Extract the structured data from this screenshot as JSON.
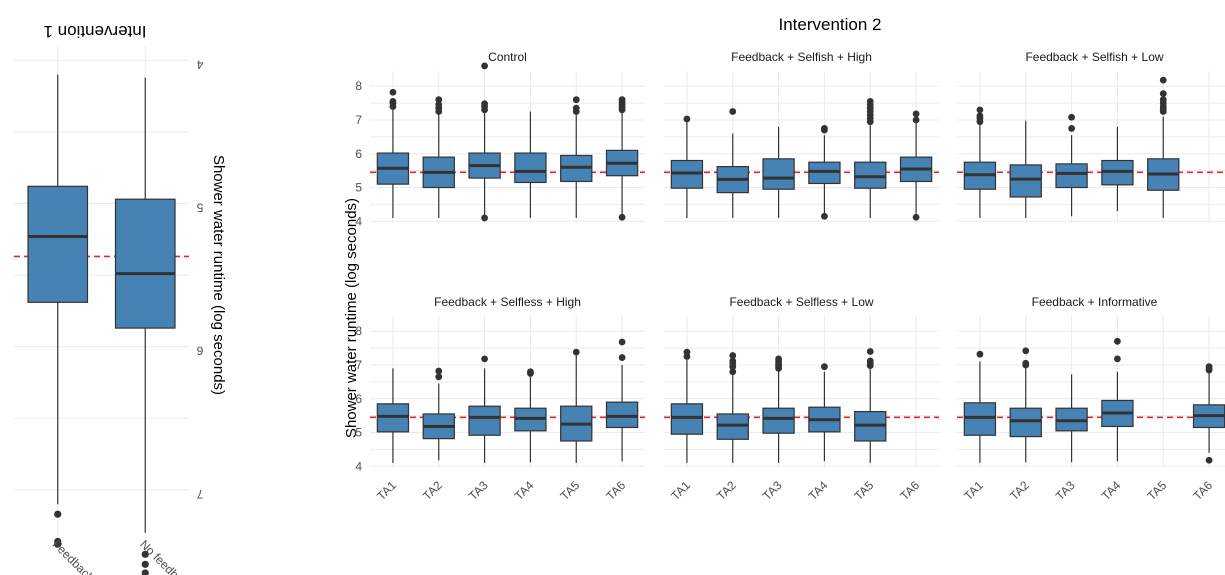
{
  "colors": {
    "box_fill": "#4682b4",
    "box_line": "#333333",
    "reference_line": "#e4262c",
    "grid": "#ebebeb"
  },
  "chart_data": [
    {
      "type": "boxplot",
      "title": "Intervention 1",
      "rotated_180": true,
      "categories": [
        "Feedback",
        "No feedback"
      ],
      "ylabel": "Shower water runtime (log seconds)",
      "ylim": [
        3.9,
        7.35
      ],
      "yticks": [
        "4",
        "5",
        "6",
        "7"
      ],
      "reference_line": 5.37,
      "boxes": [
        {
          "category": "Feedback",
          "min": 4.1,
          "q1": 4.88,
          "median": 5.23,
          "q3": 5.69,
          "max": 7.1,
          "outliers": [
            7.17,
            7.36,
            7.38
          ]
        },
        {
          "category": "No feedback",
          "min": 4.12,
          "q1": 4.97,
          "median": 5.49,
          "q3": 5.87,
          "max": 7.3,
          "outliers": [
            7.45,
            7.52,
            7.58
          ]
        }
      ]
    },
    {
      "type": "boxplot",
      "title": "Intervention 2",
      "ylabel": "Shower water runtime (log seconds)",
      "ylim": [
        3.95,
        8.45
      ],
      "yticks": [
        "4",
        "5",
        "6",
        "7",
        "8"
      ],
      "categories": [
        "TA1",
        "TA2",
        "TA3",
        "TA4",
        "TA5",
        "TA6"
      ],
      "reference_line": 5.45,
      "panels": [
        {
          "name": "Control",
          "boxes": [
            {
              "category": "TA1",
              "min": 4.1,
              "q1": 5.1,
              "median": 5.57,
              "q3": 6.02,
              "max": 7.3,
              "outliers": [
                7.4,
                7.5,
                7.55,
                7.82
              ]
            },
            {
              "category": "TA2",
              "min": 4.1,
              "q1": 5.0,
              "median": 5.45,
              "q3": 5.9,
              "max": 7.2,
              "outliers": [
                7.25,
                7.35,
                7.45,
                7.6
              ]
            },
            {
              "category": "TA3",
              "min": 4.12,
              "q1": 5.28,
              "median": 5.65,
              "q3": 6.02,
              "max": 7.2,
              "outliers": [
                4.1,
                7.3,
                7.4,
                7.48,
                8.6
              ]
            },
            {
              "category": "TA4",
              "min": 4.1,
              "q1": 5.15,
              "median": 5.48,
              "q3": 6.02,
              "max": 7.25,
              "outliers": []
            },
            {
              "category": "TA5",
              "min": 4.1,
              "q1": 5.18,
              "median": 5.6,
              "q3": 5.95,
              "max": 7.15,
              "outliers": [
                7.25,
                7.35,
                7.6
              ]
            },
            {
              "category": "TA6",
              "min": 4.15,
              "q1": 5.35,
              "median": 5.72,
              "q3": 6.1,
              "max": 7.25,
              "outliers": [
                4.12,
                7.3,
                7.38,
                7.45,
                7.52,
                7.6
              ]
            }
          ]
        },
        {
          "name": "Feedback + Selfish + High",
          "boxes": [
            {
              "category": "TA1",
              "min": 4.1,
              "q1": 4.98,
              "median": 5.43,
              "q3": 5.8,
              "max": 7.0,
              "outliers": [
                7.03
              ]
            },
            {
              "category": "TA2",
              "min": 4.1,
              "q1": 4.85,
              "median": 5.24,
              "q3": 5.62,
              "max": 6.6,
              "outliers": [
                7.25
              ]
            },
            {
              "category": "TA3",
              "min": 4.1,
              "q1": 4.95,
              "median": 5.28,
              "q3": 5.85,
              "max": 6.8,
              "outliers": []
            },
            {
              "category": "TA4",
              "min": 4.2,
              "q1": 5.12,
              "median": 5.48,
              "q3": 5.75,
              "max": 6.55,
              "outliers": [
                4.15,
                6.7,
                6.75
              ]
            },
            {
              "category": "TA5",
              "min": 4.1,
              "q1": 4.98,
              "median": 5.32,
              "q3": 5.75,
              "max": 6.85,
              "outliers": [
                6.95,
                7.05,
                7.15,
                7.25,
                7.35,
                7.45,
                7.55
              ]
            },
            {
              "category": "TA6",
              "min": 4.15,
              "q1": 5.18,
              "median": 5.55,
              "q3": 5.9,
              "max": 6.9,
              "outliers": [
                4.12,
                7.0,
                7.18
              ]
            }
          ]
        },
        {
          "name": "Feedback + Selfish + Low",
          "boxes": [
            {
              "category": "TA1",
              "min": 4.1,
              "q1": 4.95,
              "median": 5.38,
              "q3": 5.75,
              "max": 6.85,
              "outliers": [
                6.95,
                7.05,
                7.12,
                7.3
              ]
            },
            {
              "category": "TA2",
              "min": 4.1,
              "q1": 4.72,
              "median": 5.25,
              "q3": 5.67,
              "max": 6.98,
              "outliers": []
            },
            {
              "category": "TA3",
              "min": 4.15,
              "q1": 5.0,
              "median": 5.42,
              "q3": 5.7,
              "max": 6.55,
              "outliers": [
                6.75,
                7.08
              ]
            },
            {
              "category": "TA4",
              "min": 4.3,
              "q1": 5.08,
              "median": 5.48,
              "q3": 5.8,
              "max": 6.8,
              "outliers": []
            },
            {
              "category": "TA5",
              "min": 4.1,
              "q1": 4.92,
              "median": 5.4,
              "q3": 5.85,
              "max": 7.1,
              "outliers": [
                7.25,
                7.32,
                7.4,
                7.5,
                7.6,
                7.78,
                8.18
              ]
            }
          ]
        },
        {
          "name": "Feedback + Selfless + High",
          "boxes": [
            {
              "category": "TA1",
              "min": 4.1,
              "q1": 5.02,
              "median": 5.48,
              "q3": 5.85,
              "max": 6.9,
              "outliers": []
            },
            {
              "category": "TA2",
              "min": 4.18,
              "q1": 4.82,
              "median": 5.18,
              "q3": 5.55,
              "max": 6.45,
              "outliers": [
                6.65,
                6.82
              ]
            },
            {
              "category": "TA3",
              "min": 4.1,
              "q1": 4.92,
              "median": 5.45,
              "q3": 5.78,
              "max": 6.9,
              "outliers": [
                7.18
              ]
            },
            {
              "category": "TA4",
              "min": 4.12,
              "q1": 5.05,
              "median": 5.42,
              "q3": 5.72,
              "max": 6.72,
              "outliers": [
                6.75,
                6.8
              ]
            },
            {
              "category": "TA5",
              "min": 4.1,
              "q1": 4.75,
              "median": 5.25,
              "q3": 5.78,
              "max": 7.3,
              "outliers": [
                7.38
              ]
            },
            {
              "category": "TA6",
              "min": 4.15,
              "q1": 5.15,
              "median": 5.48,
              "q3": 5.9,
              "max": 7.0,
              "outliers": [
                7.22,
                7.68
              ]
            }
          ]
        },
        {
          "name": "Feedback + Selfless + Low",
          "boxes": [
            {
              "category": "TA1",
              "min": 4.1,
              "q1": 4.95,
              "median": 5.45,
              "q3": 5.85,
              "max": 7.15,
              "outliers": [
                7.25,
                7.38
              ]
            },
            {
              "category": "TA2",
              "min": 4.1,
              "q1": 4.8,
              "median": 5.22,
              "q3": 5.55,
              "max": 6.7,
              "outliers": [
                6.8,
                6.95,
                7.05,
                7.12,
                7.28
              ]
            },
            {
              "category": "TA3",
              "min": 4.1,
              "q1": 4.98,
              "median": 5.42,
              "q3": 5.72,
              "max": 6.85,
              "outliers": [
                6.9,
                6.95,
                7.02,
                7.1,
                7.18
              ]
            },
            {
              "category": "TA4",
              "min": 4.15,
              "q1": 5.02,
              "median": 5.38,
              "q3": 5.75,
              "max": 6.8,
              "outliers": [
                6.95
              ]
            },
            {
              "category": "TA5",
              "min": 4.1,
              "q1": 4.75,
              "median": 5.22,
              "q3": 5.62,
              "max": 6.92,
              "outliers": [
                6.98,
                7.05,
                7.12,
                7.4
              ]
            }
          ]
        },
        {
          "name": "Feedback + Informative",
          "boxes": [
            {
              "category": "TA1",
              "min": 4.1,
              "q1": 4.92,
              "median": 5.45,
              "q3": 5.88,
              "max": 7.1,
              "outliers": [
                7.32
              ]
            },
            {
              "category": "TA2",
              "min": 4.12,
              "q1": 4.88,
              "median": 5.35,
              "q3": 5.72,
              "max": 6.95,
              "outliers": [
                7.0,
                7.05,
                7.42
              ]
            },
            {
              "category": "TA3",
              "min": 4.12,
              "q1": 5.05,
              "median": 5.35,
              "q3": 5.72,
              "max": 6.72,
              "outliers": []
            },
            {
              "category": "TA4",
              "min": 4.15,
              "q1": 5.18,
              "median": 5.58,
              "q3": 5.95,
              "max": 6.8,
              "outliers": [
                7.18,
                7.7
              ]
            },
            {
              "category": "TA6",
              "min": 4.4,
              "q1": 5.15,
              "median": 5.5,
              "q3": 5.82,
              "max": 6.8,
              "outliers": [
                4.18,
                6.85,
                6.9,
                6.95
              ]
            }
          ]
        }
      ]
    }
  ]
}
